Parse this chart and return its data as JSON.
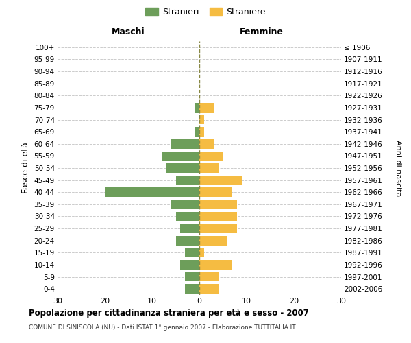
{
  "age_groups": [
    "0-4",
    "5-9",
    "10-14",
    "15-19",
    "20-24",
    "25-29",
    "30-34",
    "35-39",
    "40-44",
    "45-49",
    "50-54",
    "55-59",
    "60-64",
    "65-69",
    "70-74",
    "75-79",
    "80-84",
    "85-89",
    "90-94",
    "95-99",
    "100+"
  ],
  "birth_years": [
    "2002-2006",
    "1997-2001",
    "1992-1996",
    "1987-1991",
    "1982-1986",
    "1977-1981",
    "1972-1976",
    "1967-1971",
    "1962-1966",
    "1957-1961",
    "1952-1956",
    "1947-1951",
    "1942-1946",
    "1937-1941",
    "1932-1936",
    "1927-1931",
    "1922-1926",
    "1917-1921",
    "1912-1916",
    "1907-1911",
    "≤ 1906"
  ],
  "maschi": [
    3,
    3,
    4,
    3,
    5,
    4,
    5,
    6,
    20,
    5,
    7,
    8,
    6,
    1,
    0,
    1,
    0,
    0,
    0,
    0,
    0
  ],
  "femmine": [
    4,
    4,
    7,
    1,
    6,
    8,
    8,
    8,
    7,
    9,
    4,
    5,
    3,
    1,
    1,
    3,
    0,
    0,
    0,
    0,
    0
  ],
  "maschi_color": "#6d9e5a",
  "femmine_color": "#f5bc42",
  "title": "Popolazione per cittadinanza straniera per età e sesso - 2007",
  "subtitle": "COMUNE DI SINISCOLA (NU) - Dati ISTAT 1° gennaio 2007 - Elaborazione TUTTITALIA.IT",
  "ylabel_left": "Fasce di età",
  "ylabel_right": "Anni di nascita",
  "xlabel_maschi": "Maschi",
  "xlabel_femmine": "Femmine",
  "legend_stranieri": "Stranieri",
  "legend_straniere": "Straniere",
  "xlim": 30,
  "bg_color": "#ffffff",
  "grid_color": "#cccccc",
  "vline_color": "#888844"
}
